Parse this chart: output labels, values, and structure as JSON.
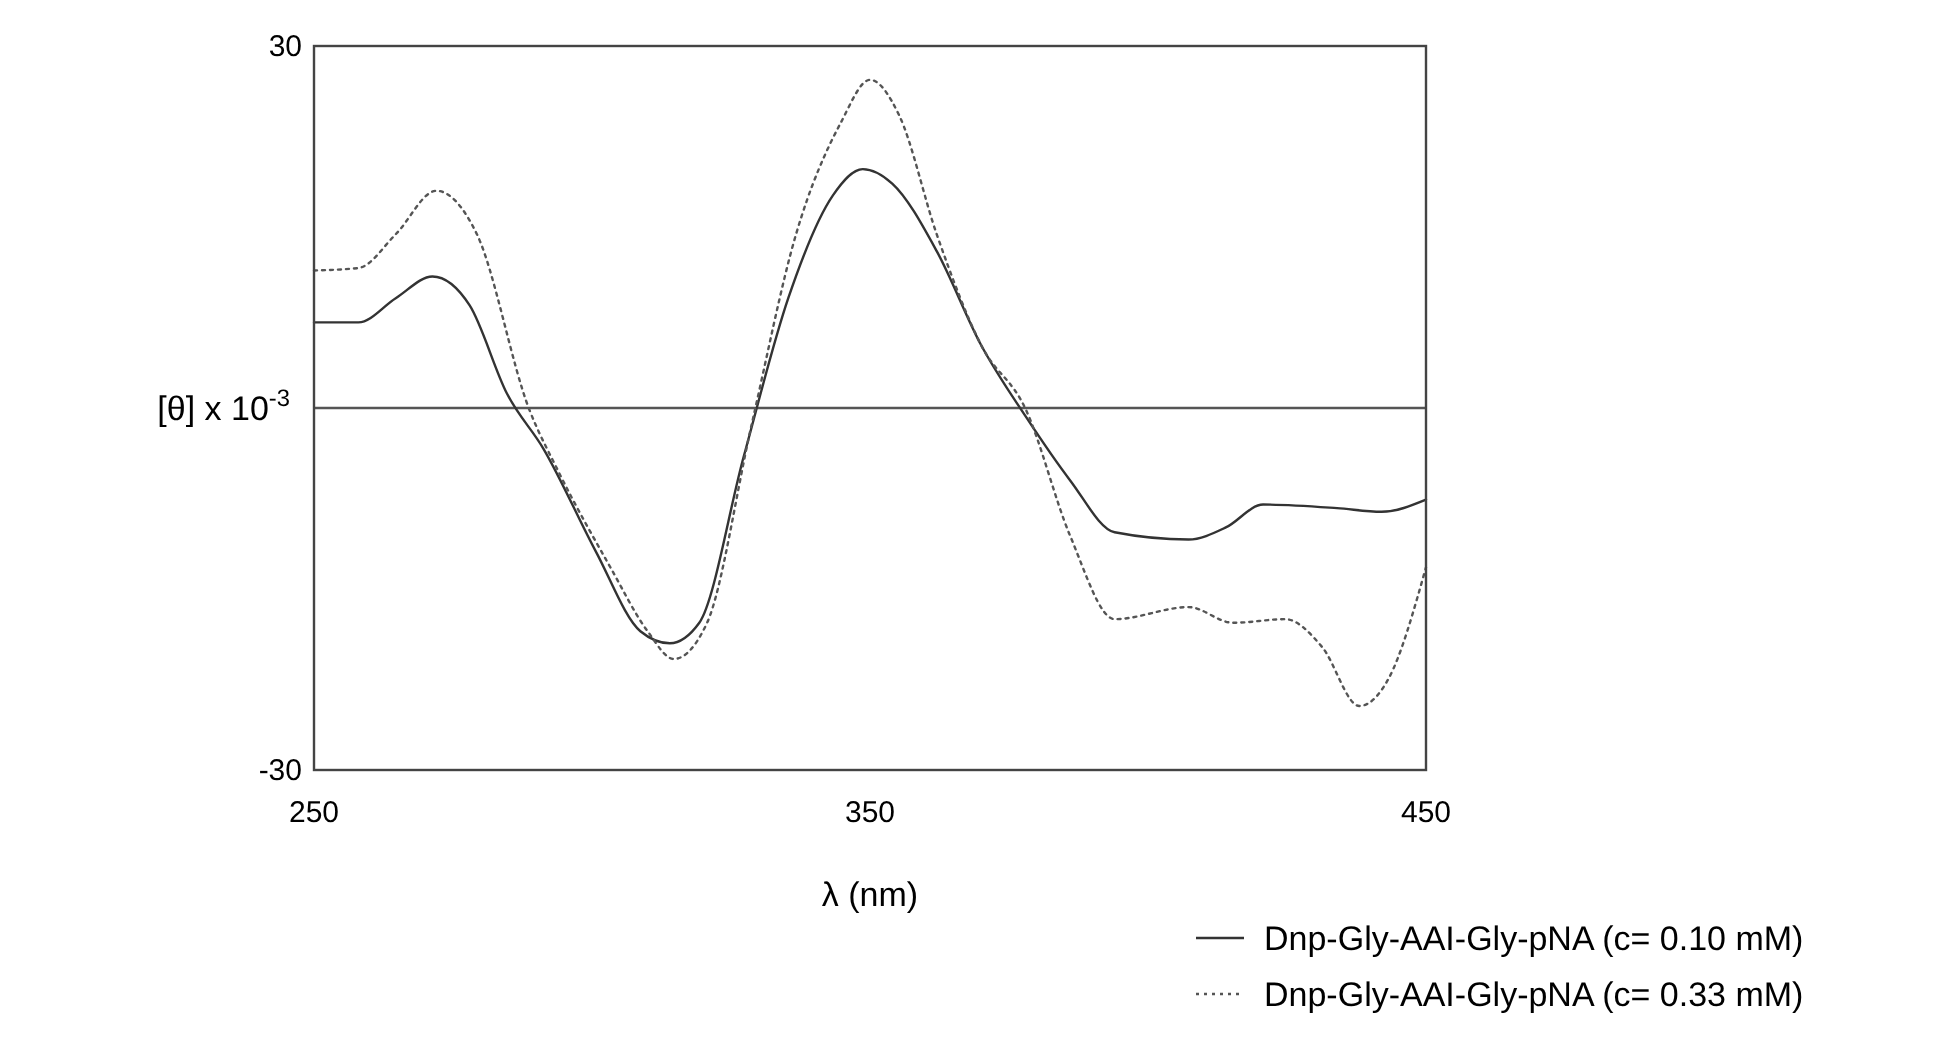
{
  "chart_data": {
    "type": "line",
    "xlabel": "λ (nm)",
    "ylabel": "[θ] x 10$^{-3}$",
    "xlim": [
      250,
      450
    ],
    "ylim": [
      -30,
      30
    ],
    "xticks": [
      250,
      350,
      450
    ],
    "yticks": [
      -30,
      30
    ],
    "legend": "bottom right",
    "ref_lines": [
      {
        "axis": "y",
        "value": 0,
        "color": "#555555"
      }
    ],
    "series": [
      {
        "name": "Dnp-Gly-AAI-Gly-pNA (c= 0.10 mM)",
        "color": "#333333",
        "line_style": "solid",
        "x": [
          250,
          258,
          264.7,
          271.3,
          278,
          284.7,
          291.3,
          300.7,
          308.7,
          314,
          319.3,
          327.3,
          335.3,
          343.3,
          348.7,
          354,
          362,
          370,
          378,
          386,
          394,
          407.3,
          414,
          420.7,
          434,
          442,
          450
        ],
        "values": [
          7.1,
          7.1,
          9.1,
          10.9,
          8.5,
          1.2,
          -3.4,
          -11.9,
          -18.5,
          -19.5,
          -17.8,
          -4,
          9.1,
          17.6,
          19.8,
          18.6,
          13,
          5.2,
          -0.7,
          -6,
          -10.3,
          -10.9,
          -9.9,
          -8,
          -8.3,
          -8.6,
          -7.6
        ]
      },
      {
        "name": "Dnp-Gly-AAI-Gly-pNA (c= 0.33 mM)",
        "color": "#555555",
        "line_style": "dotted",
        "x": [
          250,
          258,
          264.7,
          272,
          279.3,
          288.7,
          294,
          303.3,
          310,
          314.7,
          320.7,
          328.7,
          336.7,
          344.7,
          350,
          355.3,
          362,
          370,
          378,
          386,
          394,
          407.3,
          415.3,
          424.7,
          431.3,
          438,
          443.3,
          450
        ],
        "values": [
          11.4,
          11.6,
          14.4,
          18,
          14.4,
          -0.1,
          -5.3,
          -13.2,
          -18.5,
          -20.8,
          -17.8,
          -1.4,
          14.4,
          23.6,
          27.2,
          24.2,
          14.4,
          5.2,
          -0.1,
          -10.6,
          -17.5,
          -16.5,
          -17.8,
          -17.5,
          -19.8,
          -24.7,
          -22.4,
          -13.2
        ]
      }
    ]
  }
}
